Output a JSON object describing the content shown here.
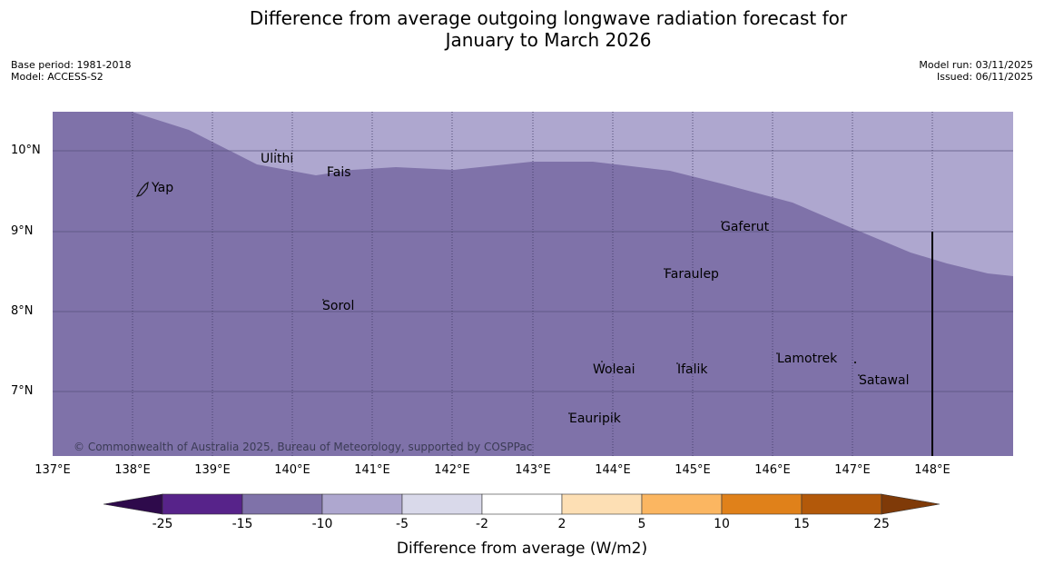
{
  "header": {
    "title_line1": "Difference from average outgoing longwave radiation forecast for",
    "title_line2": "January to March 2026",
    "base_period": "Base period: 1981-2018",
    "model": "Model: ACCESS-S2",
    "model_run": "Model run: 03/11/2025",
    "issued": "Issued: 06/11/2025"
  },
  "map": {
    "lat_labels": [
      "10°N",
      "9°N",
      "8°N",
      "7°N"
    ],
    "lon_labels": [
      "137°E",
      "138°E",
      "139°E",
      "140°E",
      "141°E",
      "142°E",
      "143°E",
      "144°E",
      "145°E",
      "146°E",
      "147°E",
      "148°E"
    ],
    "places": [
      {
        "name": "Yap"
      },
      {
        "name": "Ulithi"
      },
      {
        "name": "Fais"
      },
      {
        "name": "Gaferut"
      },
      {
        "name": "Faraulep"
      },
      {
        "name": "Sorol"
      },
      {
        "name": "Woleai"
      },
      {
        "name": "Ifalik"
      },
      {
        "name": "Lamotrek"
      },
      {
        "name": "Satawal"
      },
      {
        "name": "Eauripik"
      }
    ],
    "copyright": "© Commonwealth of Australia 2025, Bureau of Meteorology, supported by COSPPac",
    "colors": {
      "region_dark": "#7f72a9",
      "region_light": "#aea7cf"
    }
  },
  "colorbar": {
    "label": "Difference from average (W/m2)",
    "ticks": [
      "-25",
      "-15",
      "-10",
      "-5",
      "-2",
      "2",
      "5",
      "10",
      "15",
      "25"
    ],
    "colors": [
      "#2e0a4b",
      "#57238a",
      "#7f72a9",
      "#aea7cf",
      "#d9d9ea",
      "#ffffff",
      "#fddfb4",
      "#fbb661",
      "#e0811a",
      "#b3590a",
      "#7f3a08"
    ]
  }
}
